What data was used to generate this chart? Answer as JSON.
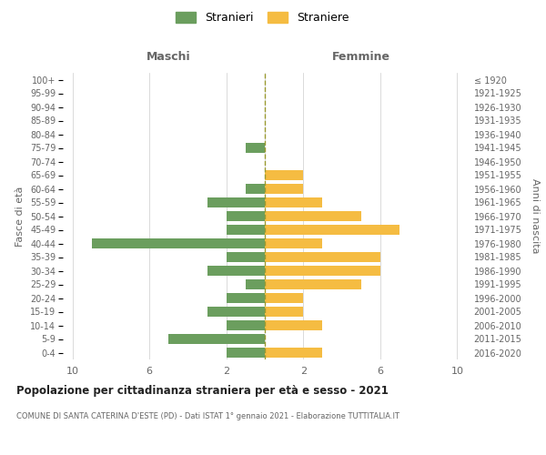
{
  "age_groups": [
    "100+",
    "95-99",
    "90-94",
    "85-89",
    "80-84",
    "75-79",
    "70-74",
    "65-69",
    "60-64",
    "55-59",
    "50-54",
    "45-49",
    "40-44",
    "35-39",
    "30-34",
    "25-29",
    "20-24",
    "15-19",
    "10-14",
    "5-9",
    "0-4"
  ],
  "birth_years": [
    "≤ 1920",
    "1921-1925",
    "1926-1930",
    "1931-1935",
    "1936-1940",
    "1941-1945",
    "1946-1950",
    "1951-1955",
    "1956-1960",
    "1961-1965",
    "1966-1970",
    "1971-1975",
    "1976-1980",
    "1981-1985",
    "1986-1990",
    "1991-1995",
    "1996-2000",
    "2001-2005",
    "2006-2010",
    "2011-2015",
    "2016-2020"
  ],
  "maschi": [
    0,
    0,
    0,
    0,
    0,
    1,
    0,
    0,
    1,
    3,
    2,
    2,
    9,
    2,
    3,
    1,
    2,
    3,
    2,
    5,
    2
  ],
  "femmine": [
    0,
    0,
    0,
    0,
    0,
    0,
    0,
    2,
    2,
    3,
    5,
    7,
    3,
    6,
    6,
    5,
    2,
    2,
    3,
    0,
    3
  ],
  "male_color": "#6b9e5e",
  "female_color": "#f5bc42",
  "center_line_color": "#9a9a30",
  "title": "Popolazione per cittadinanza straniera per età e sesso - 2021",
  "subtitle": "COMUNE DI SANTA CATERINA D'ESTE (PD) - Dati ISTAT 1° gennaio 2021 - Elaborazione TUTTITALIA.IT",
  "ylabel_left": "Fasce di età",
  "ylabel_right": "Anni di nascita",
  "label_maschi": "Maschi",
  "label_femmine": "Femmine",
  "legend_maschi": "Stranieri",
  "legend_femmine": "Straniere",
  "background_color": "#ffffff",
  "grid_color": "#cccccc",
  "text_color": "#666666",
  "title_color": "#222222"
}
